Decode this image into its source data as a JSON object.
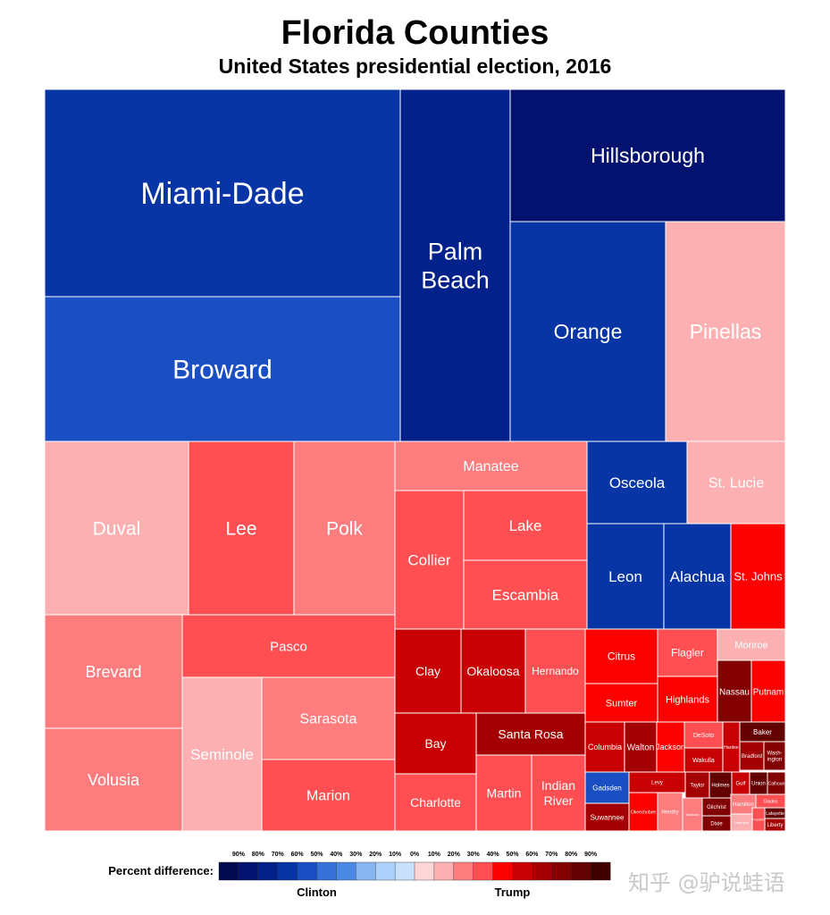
{
  "title": "Florida Counties",
  "subtitle": "United States presidential election, 2016",
  "watermark": "知乎 @驴说蛙语",
  "chart_data": {
    "type": "treemap",
    "title": "Florida Counties",
    "subtitle": "United States presidential election, 2016",
    "colors": {
      "clinton": [
        "#020a4d",
        "#03126e",
        "#03218a",
        "#0735a6",
        "#1a4fc4",
        "#3571d6",
        "#4a89e3",
        "#87b5ef",
        "#acd1fb",
        "#c8e0fb"
      ],
      "trump": [
        "#fdd5d7",
        "#fdb0b2",
        "#fd7d7f",
        "#ff4f52",
        "#fd0000",
        "#c80004",
        "#a40003",
        "#830002",
        "#620002",
        "#3f0000"
      ]
    },
    "legend": {
      "label": "Percent difference:",
      "clinton_label": "Clinton",
      "trump_label": "Trump",
      "clinton_ticks": [
        "90%",
        "80%",
        "70%",
        "60%",
        "50%",
        "40%",
        "30%",
        "20%",
        "10%"
      ],
      "zero_tick": "0%",
      "trump_ticks": [
        "10%",
        "20%",
        "30%",
        "40%",
        "50%",
        "60%",
        "70%",
        "80%",
        "90%"
      ]
    },
    "counties": [
      {
        "name": "Miami-Dade",
        "winner": "Clinton",
        "diff_bin": 3
      },
      {
        "name": "Broward",
        "winner": "Clinton",
        "diff_bin": 4
      },
      {
        "name": "Palm Beach",
        "winner": "Clinton",
        "diff_bin": 2
      },
      {
        "name": "Hillsborough",
        "winner": "Clinton",
        "diff_bin": 1
      },
      {
        "name": "Orange",
        "winner": "Clinton",
        "diff_bin": 3
      },
      {
        "name": "Pinellas",
        "winner": "Trump",
        "diff_bin": 1
      },
      {
        "name": "Duval",
        "winner": "Trump",
        "diff_bin": 1
      },
      {
        "name": "Lee",
        "winner": "Trump",
        "diff_bin": 3
      },
      {
        "name": "Polk",
        "winner": "Trump",
        "diff_bin": 2
      },
      {
        "name": "Manatee",
        "winner": "Trump",
        "diff_bin": 2
      },
      {
        "name": "Collier",
        "winner": "Trump",
        "diff_bin": 3
      },
      {
        "name": "Lake",
        "winner": "Trump",
        "diff_bin": 3
      },
      {
        "name": "Escambia",
        "winner": "Trump",
        "diff_bin": 3
      },
      {
        "name": "Osceola",
        "winner": "Clinton",
        "diff_bin": 3
      },
      {
        "name": "St. Lucie",
        "winner": "Trump",
        "diff_bin": 1
      },
      {
        "name": "Leon",
        "winner": "Clinton",
        "diff_bin": 3
      },
      {
        "name": "Alachua",
        "winner": "Clinton",
        "diff_bin": 3
      },
      {
        "name": "St. Johns",
        "winner": "Trump",
        "diff_bin": 4
      },
      {
        "name": "Brevard",
        "winner": "Trump",
        "diff_bin": 2
      },
      {
        "name": "Volusia",
        "winner": "Trump",
        "diff_bin": 2
      },
      {
        "name": "Pasco",
        "winner": "Trump",
        "diff_bin": 3
      },
      {
        "name": "Seminole",
        "winner": "Trump",
        "diff_bin": 1
      },
      {
        "name": "Sarasota",
        "winner": "Trump",
        "diff_bin": 2
      },
      {
        "name": "Marion",
        "winner": "Trump",
        "diff_bin": 3
      },
      {
        "name": "Clay",
        "winner": "Trump",
        "diff_bin": 5
      },
      {
        "name": "Okaloosa",
        "winner": "Trump",
        "diff_bin": 5
      },
      {
        "name": "Hernando",
        "winner": "Trump",
        "diff_bin": 3
      },
      {
        "name": "Bay",
        "winner": "Trump",
        "diff_bin": 5
      },
      {
        "name": "Santa Rosa",
        "winner": "Trump",
        "diff_bin": 6
      },
      {
        "name": "Charlotte",
        "winner": "Trump",
        "diff_bin": 3
      },
      {
        "name": "Martin",
        "winner": "Trump",
        "diff_bin": 3
      },
      {
        "name": "Indian River",
        "winner": "Trump",
        "diff_bin": 3
      },
      {
        "name": "Citrus",
        "winner": "Trump",
        "diff_bin": 4
      },
      {
        "name": "Flagler",
        "winner": "Trump",
        "diff_bin": 3
      },
      {
        "name": "Monroe",
        "winner": "Trump",
        "diff_bin": 1
      },
      {
        "name": "Sumter",
        "winner": "Trump",
        "diff_bin": 4
      },
      {
        "name": "Highlands",
        "winner": "Trump",
        "diff_bin": 4
      },
      {
        "name": "Nassau",
        "winner": "Trump",
        "diff_bin": 7
      },
      {
        "name": "Putnam",
        "winner": "Trump",
        "diff_bin": 4
      },
      {
        "name": "Columbia",
        "winner": "Trump",
        "diff_bin": 5
      },
      {
        "name": "Walton",
        "winner": "Trump",
        "diff_bin": 6
      },
      {
        "name": "Jackson",
        "winner": "Trump",
        "diff_bin": 4
      },
      {
        "name": "DeSoto",
        "winner": "Trump",
        "diff_bin": 3
      },
      {
        "name": "Hardee",
        "winner": "Trump",
        "diff_bin": 5
      },
      {
        "name": "Baker",
        "winner": "Trump",
        "diff_bin": 8
      },
      {
        "name": "Wakulla",
        "winner": "Trump",
        "diff_bin": 5
      },
      {
        "name": "Bradford",
        "winner": "Trump",
        "diff_bin": 6
      },
      {
        "name": "Wash-ington",
        "winner": "Trump",
        "diff_bin": 7
      },
      {
        "name": "Gadsden",
        "winner": "Clinton",
        "diff_bin": 4
      },
      {
        "name": "Levy",
        "winner": "Trump",
        "diff_bin": 5
      },
      {
        "name": "Taylor",
        "winner": "Trump",
        "diff_bin": 6
      },
      {
        "name": "Holmes",
        "winner": "Trump",
        "diff_bin": 8
      },
      {
        "name": "Gulf",
        "winner": "Trump",
        "diff_bin": 5
      },
      {
        "name": "Union",
        "winner": "Trump",
        "diff_bin": 8
      },
      {
        "name": "Calhoun",
        "winner": "Trump",
        "diff_bin": 7
      },
      {
        "name": "Suwannee",
        "winner": "Trump",
        "diff_bin": 6
      },
      {
        "name": "Okeechobee",
        "winner": "Trump",
        "diff_bin": 4
      },
      {
        "name": "Hendry",
        "winner": "Trump",
        "diff_bin": 2
      },
      {
        "name": "Madison",
        "winner": "Trump",
        "diff_bin": 2
      },
      {
        "name": "Gilchrist",
        "winner": "Trump",
        "diff_bin": 7
      },
      {
        "name": "Hamilton",
        "winner": "Trump",
        "diff_bin": 2
      },
      {
        "name": "Dixie",
        "winner": "Trump",
        "diff_bin": 7
      },
      {
        "name": "Glades",
        "winner": "Trump",
        "diff_bin": 3
      },
      {
        "name": "Jefferson",
        "winner": "Trump",
        "diff_bin": 1
      },
      {
        "name": "Franklin",
        "winner": "Trump",
        "diff_bin": 3
      },
      {
        "name": "Lafayette",
        "winner": "Trump",
        "diff_bin": 8
      },
      {
        "name": "Liberty",
        "winner": "Trump",
        "diff_bin": 6
      }
    ]
  }
}
